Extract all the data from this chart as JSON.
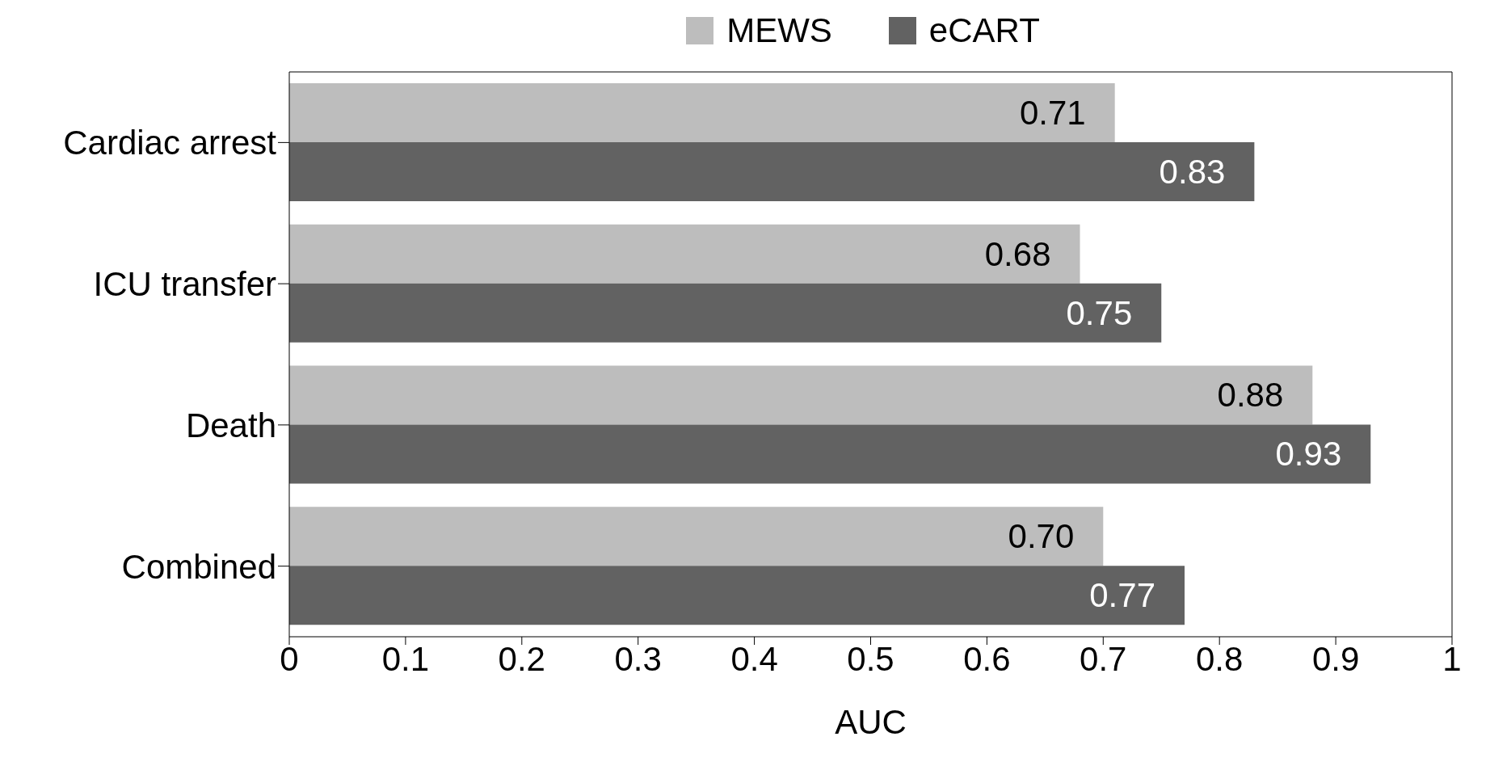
{
  "chart_data": {
    "type": "bar",
    "orientation": "horizontal",
    "xlabel": "AUC",
    "categories": [
      "Cardiac arrest",
      "ICU transfer",
      "Death",
      "Combined"
    ],
    "series": [
      {
        "name": "MEWS",
        "color": "#bdbdbd",
        "values": [
          0.71,
          0.68,
          0.88,
          0.7
        ],
        "value_labels": [
          "0.71",
          "0.68",
          "0.88",
          "0.70"
        ]
      },
      {
        "name": "eCART",
        "color": "#626262",
        "values": [
          0.83,
          0.75,
          0.93,
          0.77
        ],
        "value_labels": [
          "0.83",
          "0.75",
          "0.93",
          "0.77"
        ]
      }
    ],
    "xlim": [
      0,
      1
    ],
    "xticks": [
      0,
      0.1,
      0.2,
      0.3,
      0.4,
      0.5,
      0.6,
      0.7,
      0.8,
      0.9,
      1
    ],
    "grid": false,
    "legend": "top"
  }
}
